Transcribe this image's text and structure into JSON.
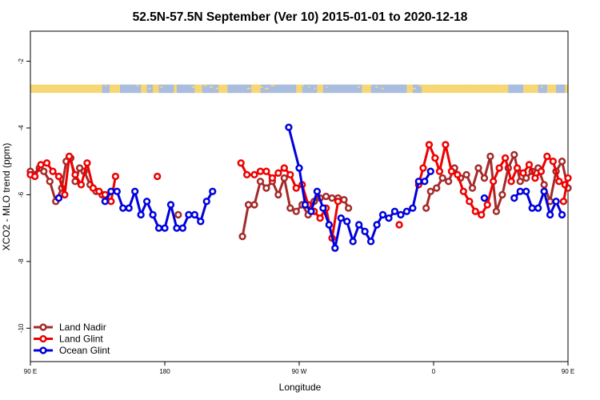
{
  "chart_data": {
    "type": "line",
    "title": "52.5N-57.5N September (Ver 10)   2015-01-01 to 2020-12-18",
    "xlabel": "Longitude",
    "ylabel": "XCO2 - MLO trend (ppm)",
    "xlim": [
      90,
      450
    ],
    "ylim": [
      -11,
      -1.1
    ],
    "x_ticks": [
      {
        "value": 90,
        "label": "90 E"
      },
      {
        "value": 180,
        "label": "180"
      },
      {
        "value": 270,
        "label": "90 W"
      },
      {
        "value": 360,
        "label": "0"
      },
      {
        "value": 450,
        "label": "90 E"
      }
    ],
    "y_ticks": [
      {
        "value": -2,
        "label": "-2"
      },
      {
        "value": -4,
        "label": "-4"
      },
      {
        "value": -6,
        "label": "-6"
      },
      {
        "value": -8,
        "label": "-8"
      },
      {
        "value": -10,
        "label": "-10"
      }
    ],
    "grid": false,
    "legend_position": "bottom-left",
    "land_mask_band": {
      "y_top": -2.7,
      "y_bottom": -2.95,
      "land_color": "#f7d774",
      "ocean_color": "#a8bde0"
    },
    "series": [
      {
        "name": "Land Nadir",
        "color": "#a52a2a",
        "segments": [
          [
            [
              90,
              -5.3
            ],
            [
              92,
              -5.4
            ],
            [
              96,
              -5.2
            ],
            [
              99,
              -5.3
            ],
            [
              103,
              -5.6
            ],
            [
              107,
              -6.2
            ],
            [
              111,
              -5.8
            ],
            [
              114,
              -5.0
            ],
            [
              117,
              -4.9
            ],
            [
              120,
              -5.6
            ],
            [
              123,
              -5.2
            ],
            [
              126,
              -5.3
            ],
            [
              130,
              -5.7
            ],
            [
              134,
              -5.9
            ],
            [
              138,
              -6.0
            ]
          ],
          [
            [
              189,
              -6.6
            ]
          ],
          [
            [
              232,
              -7.25
            ],
            [
              236,
              -6.3
            ],
            [
              240,
              -6.3
            ],
            [
              244,
              -5.6
            ],
            [
              248,
              -5.8
            ],
            [
              252,
              -5.6
            ],
            [
              256,
              -6.0
            ],
            [
              260,
              -5.5
            ],
            [
              264,
              -6.4
            ],
            [
              268,
              -6.5
            ],
            [
              272,
              -6.3
            ],
            [
              276,
              -6.6
            ],
            [
              280,
              -6.2
            ],
            [
              284,
              -6.1
            ],
            [
              288,
              -6.05
            ],
            [
              292,
              -6.1
            ],
            [
              296,
              -6.1
            ],
            [
              300,
              -6.15
            ],
            [
              303,
              -6.4
            ]
          ],
          [
            [
              355,
              -6.4
            ],
            [
              358,
              -5.9
            ],
            [
              362,
              -5.8
            ],
            [
              366,
              -5.5
            ],
            [
              370,
              -5.6
            ],
            [
              374,
              -5.2
            ],
            [
              378,
              -5.5
            ],
            [
              382,
              -5.4
            ],
            [
              386,
              -5.8
            ],
            [
              390,
              -5.2
            ],
            [
              394,
              -5.5
            ],
            [
              398,
              -4.85
            ],
            [
              402,
              -6.5
            ],
            [
              406,
              -6.0
            ],
            [
              410,
              -5.2
            ],
            [
              414,
              -4.8
            ],
            [
              418,
              -5.6
            ],
            [
              422,
              -5.5
            ],
            [
              426,
              -5.3
            ],
            [
              430,
              -5.2
            ],
            [
              434,
              -5.7
            ],
            [
              438,
              -6.2
            ],
            [
              442,
              -5.3
            ],
            [
              446,
              -5.0
            ],
            [
              450,
              -5.8
            ]
          ]
        ]
      },
      {
        "name": "Land Glint",
        "color": "#ee0000",
        "segments": [
          [
            [
              90,
              -5.4
            ],
            [
              93,
              -5.45
            ],
            [
              97,
              -5.1
            ],
            [
              101,
              -5.05
            ],
            [
              105,
              -5.3
            ],
            [
              109,
              -5.45
            ],
            [
              113,
              -6.0
            ],
            [
              116,
              -4.85
            ],
            [
              120,
              -5.4
            ],
            [
              124,
              -5.7
            ],
            [
              128,
              -5.05
            ],
            [
              132,
              -5.8
            ],
            [
              136,
              -5.9
            ],
            [
              140,
              -6.0
            ],
            [
              144,
              -6.2
            ],
            [
              147,
              -5.45
            ]
          ],
          [
            [
              175,
              -5.45
            ]
          ],
          [
            [
              231,
              -5.05
            ],
            [
              235,
              -5.4
            ],
            [
              240,
              -5.4
            ],
            [
              244,
              -5.3
            ],
            [
              248,
              -5.3
            ],
            [
              252,
              -5.5
            ],
            [
              256,
              -5.35
            ],
            [
              260,
              -5.2
            ],
            [
              264,
              -5.4
            ],
            [
              268,
              -5.8
            ],
            [
              272,
              -5.7
            ],
            [
              276,
              -6.3
            ],
            [
              280,
              -6.5
            ],
            [
              284,
              -6.7
            ],
            [
              288,
              -6.4
            ],
            [
              292,
              -7.3
            ],
            [
              296,
              -6.2
            ]
          ],
          [
            [
              337,
              -6.9
            ]
          ],
          [
            [
              350,
              -5.7
            ],
            [
              353,
              -5.2
            ],
            [
              357,
              -4.5
            ],
            [
              361,
              -4.9
            ],
            [
              364,
              -5.3
            ],
            [
              368,
              -4.5
            ],
            [
              372,
              -5.3
            ],
            [
              376,
              -5.4
            ],
            [
              380,
              -5.9
            ],
            [
              384,
              -6.2
            ],
            [
              388,
              -6.5
            ],
            [
              392,
              -6.6
            ],
            [
              396,
              -6.3
            ],
            [
              400,
              -5.6
            ],
            [
              404,
              -5.2
            ],
            [
              408,
              -4.9
            ],
            [
              412,
              -5.6
            ],
            [
              416,
              -5.2
            ],
            [
              420,
              -5.35
            ],
            [
              424,
              -5.1
            ],
            [
              428,
              -5.5
            ],
            [
              432,
              -5.3
            ],
            [
              436,
              -4.85
            ],
            [
              440,
              -5.0
            ],
            [
              444,
              -5.6
            ],
            [
              448,
              -5.7
            ]
          ],
          [
            [
              447,
              -6.2
            ],
            [
              450,
              -5.5
            ]
          ]
        ]
      },
      {
        "name": "Ocean Glint",
        "color": "#0000dd",
        "segments": [
          [
            [
              109,
              -6.1
            ]
          ],
          [
            [
              140,
              -6.2
            ],
            [
              144,
              -5.9
            ],
            [
              148,
              -5.9
            ],
            [
              152,
              -6.4
            ],
            [
              156,
              -6.4
            ],
            [
              160,
              -5.9
            ],
            [
              164,
              -6.6
            ],
            [
              168,
              -6.2
            ],
            [
              172,
              -6.6
            ],
            [
              176,
              -7.0
            ],
            [
              180,
              -7.0
            ],
            [
              184,
              -6.3
            ],
            [
              188,
              -7.0
            ],
            [
              192,
              -7.0
            ],
            [
              196,
              -6.6
            ],
            [
              200,
              -6.6
            ],
            [
              204,
              -6.8
            ],
            [
              208,
              -6.2
            ],
            [
              212,
              -5.9
            ]
          ],
          [
            [
              263,
              -3.98
            ],
            [
              270,
              -5.2
            ],
            [
              274,
              -6.3
            ],
            [
              278,
              -6.5
            ],
            [
              282,
              -5.9
            ],
            [
              286,
              -6.4
            ],
            [
              290,
              -6.9
            ],
            [
              294,
              -7.6
            ],
            [
              298,
              -6.7
            ],
            [
              302,
              -6.8
            ],
            [
              306,
              -7.4
            ],
            [
              310,
              -6.9
            ],
            [
              314,
              -7.1
            ],
            [
              318,
              -7.4
            ],
            [
              322,
              -6.9
            ],
            [
              326,
              -6.6
            ],
            [
              330,
              -6.7
            ],
            [
              334,
              -6.5
            ],
            [
              338,
              -6.6
            ],
            [
              342,
              -6.5
            ],
            [
              346,
              -6.4
            ],
            [
              350,
              -5.6
            ],
            [
              354,
              -5.6
            ],
            [
              358,
              -5.3
            ]
          ],
          [
            [
              394,
              -6.1
            ]
          ],
          [
            [
              414,
              -6.1
            ],
            [
              418,
              -5.9
            ],
            [
              422,
              -5.9
            ],
            [
              426,
              -6.4
            ],
            [
              430,
              -6.4
            ],
            [
              434,
              -5.9
            ],
            [
              438,
              -6.6
            ],
            [
              442,
              -6.2
            ],
            [
              446,
              -6.6
            ]
          ]
        ]
      }
    ]
  }
}
